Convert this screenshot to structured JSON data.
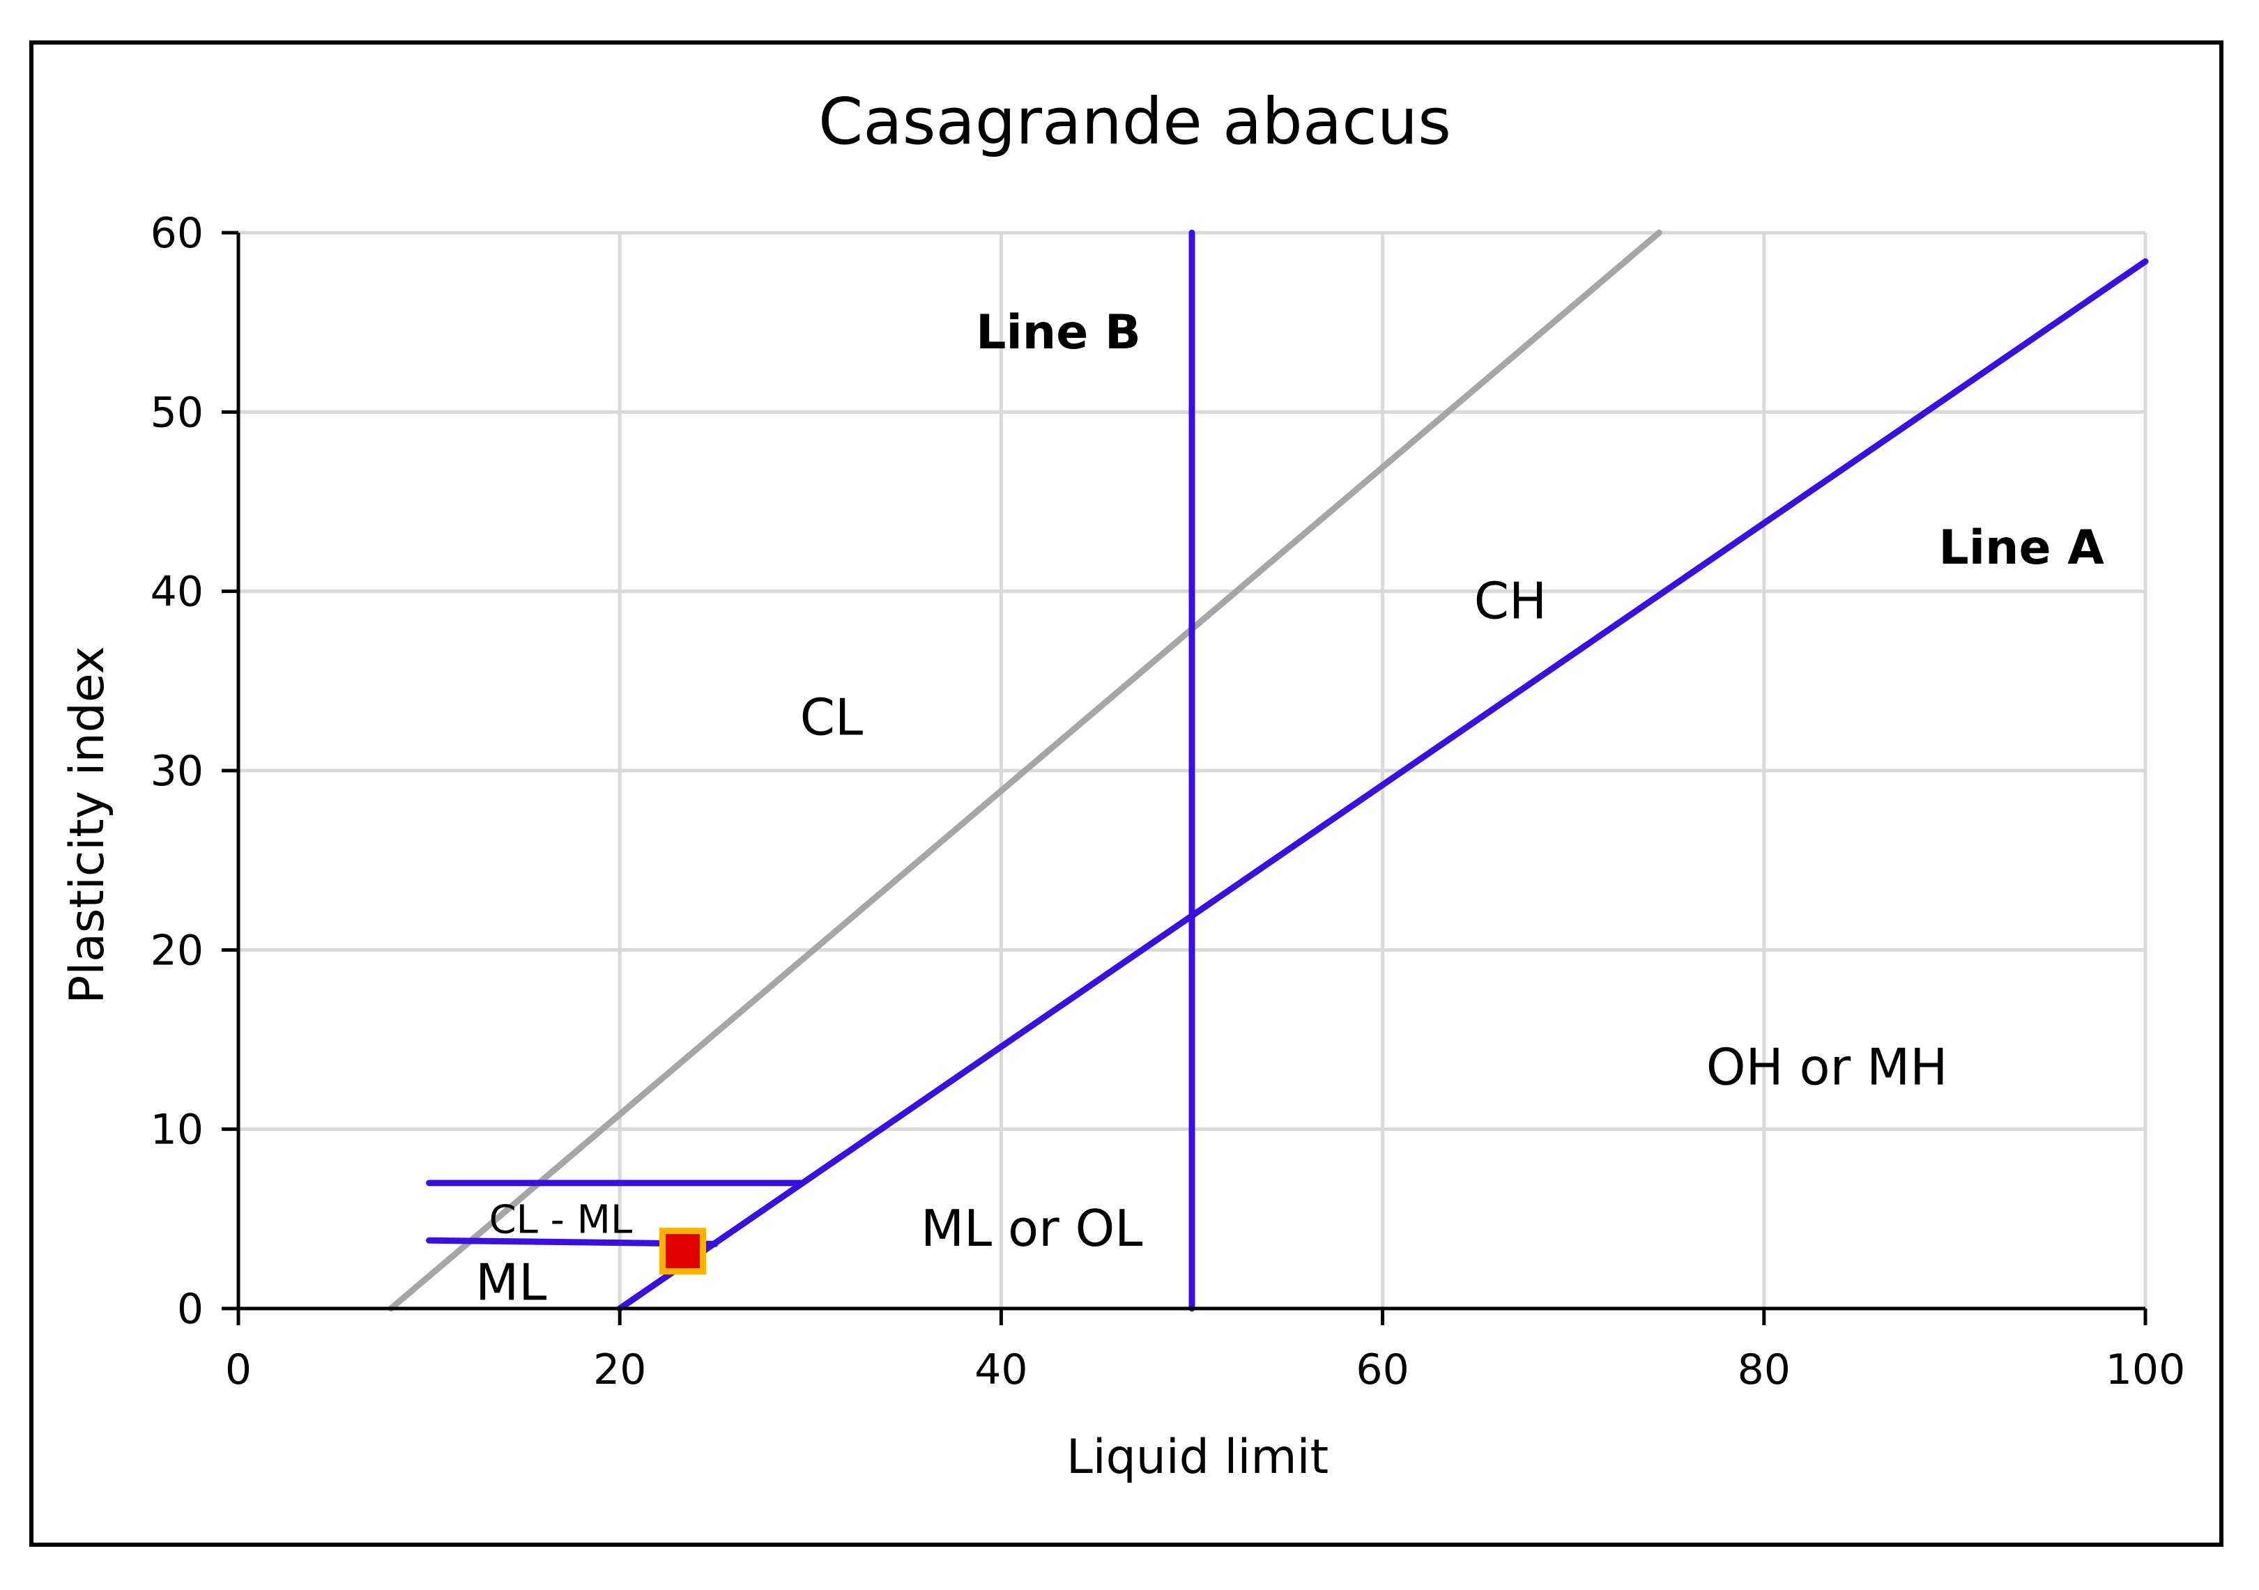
{
  "chart_data": {
    "type": "line",
    "title": "Casagrande abacus",
    "xlabel": "Liquid limit",
    "ylabel": "Plasticity index",
    "xlim": [
      0,
      100
    ],
    "ylim": [
      0,
      60
    ],
    "xticks": [
      0,
      20,
      40,
      60,
      80,
      100
    ],
    "yticks": [
      0,
      10,
      20,
      30,
      40,
      50,
      60
    ],
    "grid": true,
    "colors": {
      "line": "#3a10e0",
      "gray": "#a6a6a6",
      "grid": "#d9d9d9",
      "marker_fill": "#e00000",
      "marker_edge": "#ffb000"
    },
    "series": [
      {
        "color": "gray",
        "points": [
          [
            8,
            0
          ],
          [
            74.5,
            60
          ]
        ]
      },
      {
        "color": "line",
        "points": [
          [
            20,
            0
          ],
          [
            100,
            58.4
          ]
        ]
      },
      {
        "color": "line",
        "points": [
          [
            50,
            0
          ],
          [
            50,
            60
          ]
        ]
      },
      {
        "color": "line",
        "points": [
          [
            10,
            7
          ],
          [
            29.6,
            7
          ]
        ]
      },
      {
        "color": "line",
        "points": [
          [
            10,
            3.8
          ],
          [
            25,
            3.6
          ]
        ]
      }
    ],
    "markers": [
      {
        "x": 23.3,
        "y": 3.2,
        "shape": "square"
      }
    ],
    "annotations": [
      {
        "text": "Line B",
        "x": 43,
        "y": 54.5,
        "bold": true,
        "size": 68
      },
      {
        "text": "Line A",
        "x": 93.5,
        "y": 42.5,
        "bold": true,
        "size": 68
      },
      {
        "text": "CH",
        "x": 66.7,
        "y": 39.5,
        "bold": false,
        "size": 72
      },
      {
        "text": "CL",
        "x": 31.1,
        "y": 33,
        "bold": false,
        "size": 72
      },
      {
        "text": "OH or MH",
        "x": 83.3,
        "y": 13.5,
        "bold": false,
        "size": 72
      },
      {
        "text": "ML or OL",
        "x": 41.6,
        "y": 4.5,
        "bold": false,
        "size": 72
      },
      {
        "text": "CL - ML",
        "x": 16.9,
        "y": 5,
        "bold": false,
        "size": 56
      },
      {
        "text": "ML",
        "x": 14.3,
        "y": 1.5,
        "bold": false,
        "size": 72
      }
    ]
  }
}
